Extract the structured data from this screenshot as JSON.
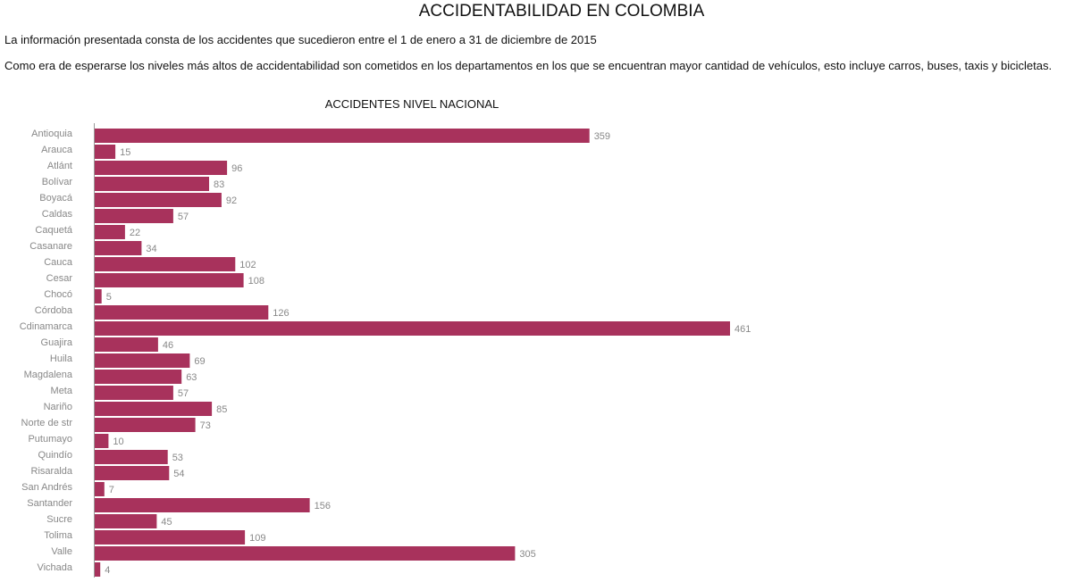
{
  "page": {
    "title": "ACCIDENTABILIDAD EN COLOMBIA",
    "paragraph_1": "La información presentada consta de los accidentes que sucedieron entre el 1 de enero a 31 de diciembre de 2015",
    "paragraph_2": "Como era de esperarse los niveles más altos de accidentabilidad son cometidos en los departamentos en los que se encuentran mayor cantidad de vehículos, esto incluye carros, buses, taxis y bicicletas."
  },
  "colors": {
    "bar": "#a8325c",
    "axis": "#999999",
    "label": "#888888"
  },
  "chart_data": {
    "type": "bar",
    "orientation": "horizontal",
    "title": "ACCIDENTES NIVEL NACIONAL",
    "xlabel": "",
    "ylabel": "",
    "grid": false,
    "data_labels": true,
    "categories": [
      "Antioquia",
      "Arauca",
      "Atlánt",
      "Bolívar",
      "Boyacá",
      "Caldas",
      "Caquetá",
      "Casanare",
      "Cauca",
      "Cesar",
      "Chocó",
      "Córdoba",
      "Cdinamarca",
      "Guajira",
      "Huila",
      "Magdalena",
      "Meta",
      "Nariño",
      "Norte de str",
      "Putumayo",
      "Quindío",
      "Risaralda",
      "San Andrés",
      "Santander",
      "Sucre",
      "Tolima",
      "Valle",
      "Vichada"
    ],
    "values": [
      359,
      15,
      96,
      83,
      92,
      57,
      22,
      34,
      102,
      108,
      5,
      126,
      461,
      46,
      69,
      63,
      57,
      85,
      73,
      10,
      53,
      54,
      7,
      156,
      45,
      109,
      305,
      4
    ]
  }
}
